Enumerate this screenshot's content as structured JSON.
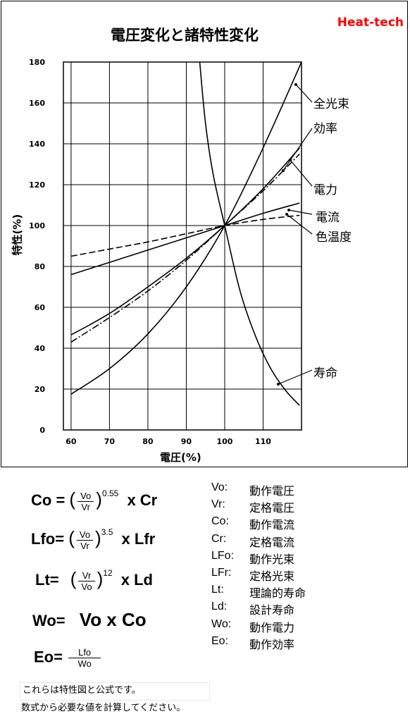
{
  "brand": "Heat-tech",
  "chart_data": {
    "type": "line",
    "title": "電圧変化と諸特性変化",
    "xlabel": "電圧(%)",
    "ylabel": "特性(%)",
    "xlim": [
      58,
      120
    ],
    "ylim": [
      0,
      180
    ],
    "x_ticks": [
      "60",
      "70",
      "80",
      "90",
      "100",
      "110"
    ],
    "y_ticks": [
      "0",
      "20",
      "40",
      "60",
      "80",
      "100",
      "120",
      "140",
      "160",
      "180"
    ],
    "grid": true,
    "series": [
      {
        "name": "全光束",
        "style": "solid",
        "x": [
          60,
          70,
          80,
          90,
          100,
          110,
          120
        ],
        "y": [
          17.5,
          30,
          47,
          70,
          100,
          138,
          180
        ]
      },
      {
        "name": "効率",
        "style": "solid",
        "x": [
          60,
          70,
          80,
          90,
          100,
          110,
          119.5
        ],
        "y": [
          46.5,
          57,
          70,
          84,
          100,
          118,
          138
        ]
      },
      {
        "name": "電力",
        "style": "dashdot",
        "x": [
          60,
          70,
          80,
          90,
          100,
          110,
          119.5
        ],
        "y": [
          43,
          55,
          68,
          83,
          100,
          117,
          135
        ]
      },
      {
        "name": "電流",
        "style": "solid",
        "x": [
          60,
          70,
          80,
          90,
          100,
          110,
          119.5
        ],
        "y": [
          76,
          82,
          88,
          94,
          100,
          106,
          111
        ]
      },
      {
        "name": "色温度",
        "style": "dashed",
        "x": [
          60,
          70,
          80,
          90,
          100,
          110,
          119.5
        ],
        "y": [
          85,
          88.5,
          92,
          96,
          100,
          103,
          105
        ]
      },
      {
        "name": "寿命",
        "style": "solid",
        "x": [
          93.5,
          95,
          97,
          100,
          104,
          108,
          112,
          116,
          119.5
        ],
        "y": [
          180,
          150,
          125,
          100,
          68,
          46,
          30,
          19,
          12
        ]
      }
    ],
    "annotations": [
      "全光束",
      "効率",
      "電力",
      "電流",
      "色温度",
      "寿命"
    ]
  },
  "formulas": {
    "co": {
      "lhs": "Co =",
      "num": "Vo",
      "den": "Vr",
      "exp": "0.55",
      "rhs": "x Cr"
    },
    "lfo": {
      "lhs": "Lfo=",
      "num": "Vo",
      "den": "Vr",
      "exp": "3.5",
      "rhs": "x Lfr"
    },
    "lt": {
      "lhs": "Lt=",
      "num": "Vr",
      "den": "Vo",
      "exp": "12",
      "rhs": "x Ld"
    },
    "wo": {
      "lhs": "Wo=",
      "rhs": "Vo x Co"
    },
    "eo": {
      "lhs": "Eo=",
      "num": "Lfo",
      "den": "Wo"
    }
  },
  "legend": [
    {
      "key": "Vo:",
      "desc": "動作電圧"
    },
    {
      "key": "Vr:",
      "desc": "定格電圧"
    },
    {
      "key": "Co:",
      "desc": "動作電流"
    },
    {
      "key": "Cr:",
      "desc": "定格電流"
    },
    {
      "key": "LFo:",
      "desc": "動作光束"
    },
    {
      "key": "LFr:",
      "desc": "定格光束"
    },
    {
      "key": "Lt:",
      "desc": "理論的寿命"
    },
    {
      "key": "Ld:",
      "desc": "設計寿命"
    },
    {
      "key": "Wo:",
      "desc": "動作電力"
    },
    {
      "key": "Eo:",
      "desc": "動作効率"
    }
  ],
  "note": {
    "line1": "これらは特性図と公式です。",
    "line2": "数式から必要な値を計算してください。"
  }
}
